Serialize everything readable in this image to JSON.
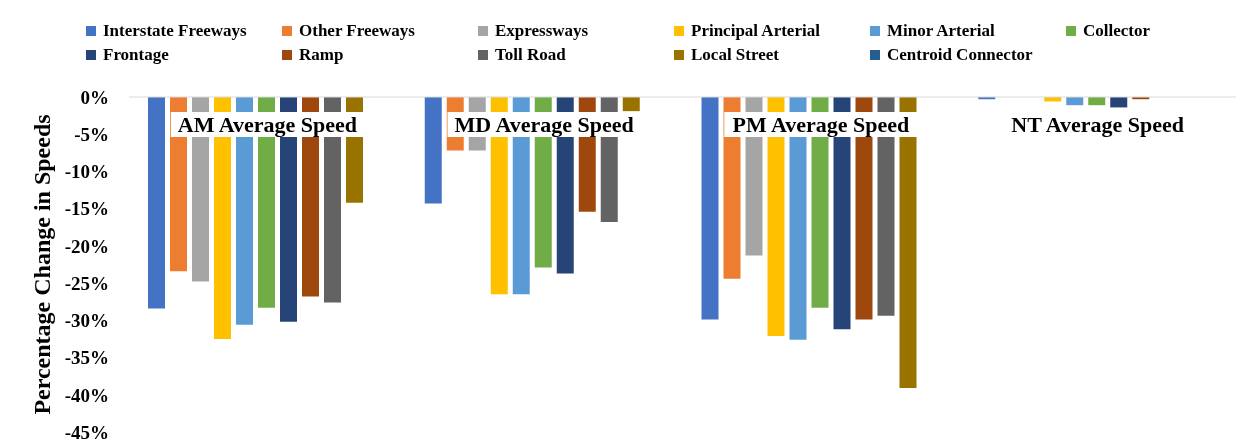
{
  "chart_data": {
    "type": "bar",
    "ylabel": "Percentage Change in Speeds",
    "legend": "top",
    "categories": [
      "AM Average Speed",
      "MD Average Speed",
      "PM Average Speed",
      "NT Average Speed"
    ],
    "ylim": [
      -45,
      0
    ],
    "yticks": [
      {
        "value": 0,
        "label": "0%"
      },
      {
        "value": -5,
        "label": "-5%"
      },
      {
        "value": -10,
        "label": "-10%"
      },
      {
        "value": -15,
        "label": "-15%"
      },
      {
        "value": -20,
        "label": "-20%"
      },
      {
        "value": -25,
        "label": "-25%"
      },
      {
        "value": -30,
        "label": "-30%"
      },
      {
        "value": -35,
        "label": "-35%"
      },
      {
        "value": -40,
        "label": "-40%"
      },
      {
        "value": -45,
        "label": "-45%"
      }
    ],
    "series": [
      {
        "name": "Interstate Freeways",
        "color": "#4472c4",
        "values": [
          -28.4,
          -14.3,
          -29.9,
          -0.3
        ]
      },
      {
        "name": "Other Freeways",
        "color": "#ed7d31",
        "values": [
          -23.4,
          -7.2,
          -24.4,
          null
        ]
      },
      {
        "name": "Expressways",
        "color": "#a5a5a5",
        "values": [
          -24.8,
          -7.2,
          -21.3,
          null
        ]
      },
      {
        "name": "Principal Arterial",
        "color": "#ffc000",
        "values": [
          -32.5,
          -26.5,
          -32.1,
          -0.6
        ]
      },
      {
        "name": "Minor Arterial",
        "color": "#5b9bd5",
        "values": [
          -30.6,
          -26.5,
          -32.6,
          -1.1
        ]
      },
      {
        "name": "Collector",
        "color": "#70ad47",
        "values": [
          -28.3,
          -22.9,
          -28.3,
          -1.1
        ]
      },
      {
        "name": "Frontage",
        "color": "#264478",
        "values": [
          -30.2,
          -23.7,
          -31.2,
          -1.4
        ]
      },
      {
        "name": "Ramp",
        "color": "#9e480e",
        "values": [
          -26.8,
          -15.4,
          -29.9,
          -0.3
        ]
      },
      {
        "name": "Toll Road",
        "color": "#636363",
        "values": [
          -27.6,
          -16.8,
          -29.4,
          null
        ]
      },
      {
        "name": "Local Street",
        "color": "#997300",
        "values": [
          -14.2,
          -1.9,
          -39.1,
          null
        ]
      },
      {
        "name": "Centroid Connector",
        "color": "#255e91",
        "values": [
          null,
          null,
          null,
          null
        ]
      }
    ]
  }
}
